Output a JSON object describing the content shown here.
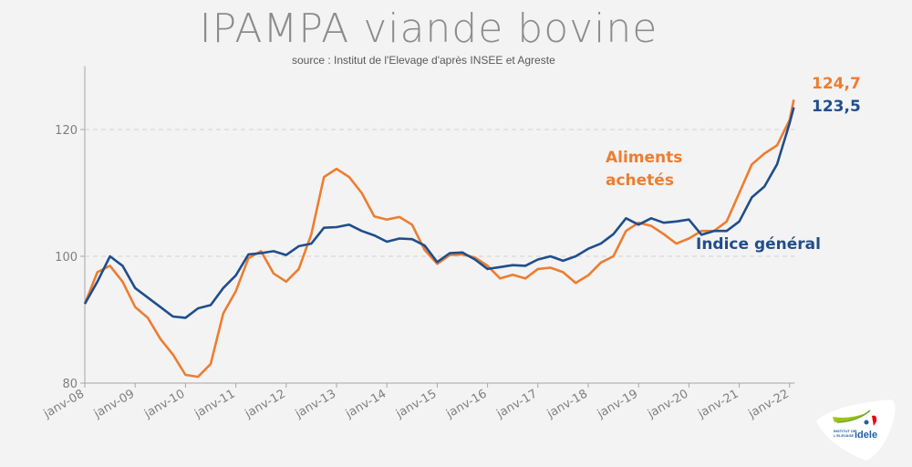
{
  "chart_data": {
    "type": "line",
    "title": "IPAMPA viande bovine",
    "subtitle": "source : Institut de l'Elevage d'après INSEE et Agreste",
    "xlabel": "",
    "ylabel": "",
    "ylim": [
      80,
      130
    ],
    "yticks": [
      "80",
      "100",
      "120"
    ],
    "xticks": [
      "janv-08",
      "janv-09",
      "janv-10",
      "janv-11",
      "janv-12",
      "janv-13",
      "janv-14",
      "janv-15",
      "janv-16",
      "janv-17",
      "janv-18",
      "janv-19",
      "janv-20",
      "janv-21",
      "janv-22"
    ],
    "grid": "horizontal dashed at 100 and 120",
    "x": [
      "2008-01",
      "2008-04",
      "2008-07",
      "2008-10",
      "2009-01",
      "2009-04",
      "2009-07",
      "2009-10",
      "2010-01",
      "2010-04",
      "2010-07",
      "2010-10",
      "2011-01",
      "2011-04",
      "2011-07",
      "2011-10",
      "2012-01",
      "2012-04",
      "2012-07",
      "2012-10",
      "2013-01",
      "2013-04",
      "2013-07",
      "2013-10",
      "2014-01",
      "2014-04",
      "2014-07",
      "2014-10",
      "2015-01",
      "2015-04",
      "2015-07",
      "2015-10",
      "2016-01",
      "2016-04",
      "2016-07",
      "2016-10",
      "2017-01",
      "2017-04",
      "2017-07",
      "2017-10",
      "2018-01",
      "2018-04",
      "2018-07",
      "2018-10",
      "2019-01",
      "2019-04",
      "2019-07",
      "2019-10",
      "2020-01",
      "2020-04",
      "2020-07",
      "2020-10",
      "2021-01",
      "2021-04",
      "2021-07",
      "2021-10",
      "2022-01",
      "2022-02"
    ],
    "series": [
      {
        "name": "Aliments achetés",
        "color": "#ed7d31",
        "last_label": "124,7",
        "values": [
          92.5,
          97.5,
          98.5,
          96,
          92,
          90.3,
          87,
          84.5,
          81.3,
          81,
          83,
          91,
          94.5,
          99.7,
          100.8,
          97.3,
          96,
          98,
          103.5,
          112.5,
          113.8,
          112.5,
          110,
          106.3,
          105.8,
          106.2,
          105,
          101,
          98.8,
          100.2,
          100.3,
          99.8,
          98.5,
          96.5,
          97.1,
          96.5,
          98,
          98.2,
          97.5,
          95.8,
          97,
          99,
          100,
          104,
          105.3,
          104.8,
          103.5,
          102,
          102.8,
          104,
          104,
          105.5,
          110,
          114.5,
          116.2,
          117.5,
          121.5,
          124.7
        ]
      },
      {
        "name": "Indice général",
        "color": "#1f4e8c",
        "last_label": "123,5",
        "values": [
          92.5,
          96,
          100,
          98.5,
          95,
          93.5,
          92,
          90.5,
          90.3,
          91.8,
          92.3,
          95,
          97,
          100.3,
          100.5,
          100.8,
          100.2,
          101.6,
          102,
          104.5,
          104.6,
          105,
          104,
          103.3,
          102.3,
          102.8,
          102.7,
          101.7,
          99.1,
          100.5,
          100.6,
          99.5,
          98,
          98.3,
          98.6,
          98.5,
          99.5,
          100,
          99.3,
          100,
          101.2,
          102,
          103.5,
          106,
          105,
          106,
          105.3,
          105.5,
          105.8,
          103.4,
          104,
          104,
          105.5,
          109.3,
          111,
          114.5,
          121,
          123.5
        ]
      }
    ]
  },
  "logo": {
    "text": "INSTITUT DE L'ELEVAGE idele"
  }
}
